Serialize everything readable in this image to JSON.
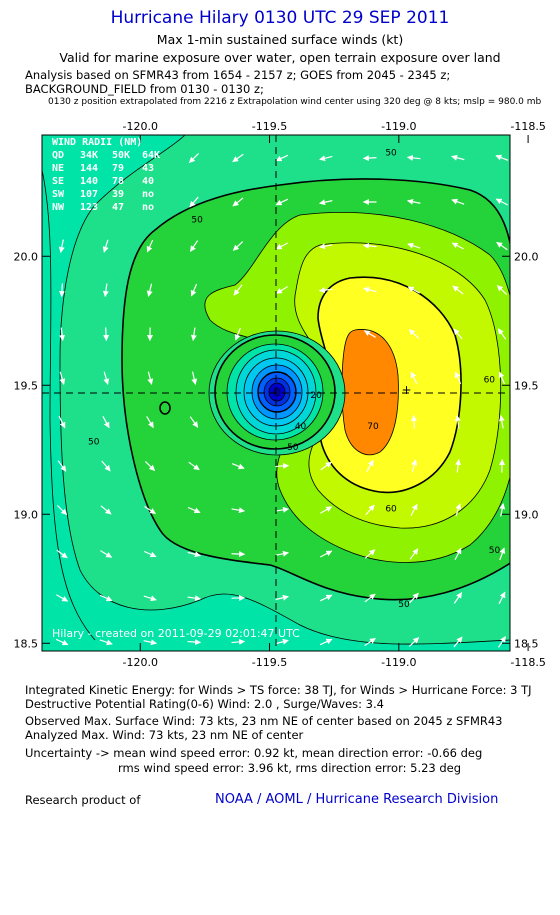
{
  "header": {
    "title": "Hurricane Hilary 0130 UTC 29 SEP 2011",
    "subtitle1": "Max 1-min sustained surface winds (kt)",
    "subtitle2": "Valid for marine exposure over water, open terrain exposure over land",
    "analysis_line1": "Analysis based on SFMR43 from 1654 - 2157 z; GOES from 2045 - 2345 z;",
    "analysis_line2": "BACKGROUND_FIELD from 0130 - 0130 z;",
    "position_note": "0130 z position extrapolated from 2216 z Extrapolation wind center using 320 deg @ 8 kts; mslp = 980.0 mb"
  },
  "wind_radii": {
    "title": "WIND RADII (NM)",
    "header": [
      "QD",
      "34K",
      "50K",
      "64K"
    ],
    "rows": [
      [
        "NE",
        "144",
        "79",
        "43"
      ],
      [
        "SE",
        "140",
        "78",
        "40"
      ],
      [
        "SW",
        "107",
        "39",
        "no"
      ],
      [
        "NW",
        "123",
        "47",
        "no"
      ]
    ]
  },
  "credit": "Hilary - created on 2011-09-29 02:01:47 UTC",
  "footer": {
    "ike": "Integrated Kinetic Energy:  for Winds > TS force: 38 TJ,  for Winds > Hurricane Force: 3 TJ",
    "dpr": "Destructive Potential Rating(0-6)   Wind: 2.0 , Surge/Waves: 3.4",
    "observed": "Observed Max. Surface Wind: 73 kts, 23 nm NE of center based on 2045 z SFMR43",
    "analyzed": "Analyzed Max. Wind: 73 kts, 23 nm NE of center",
    "uncert1": "Uncertainty -> mean wind speed error: 0.92 kt,   mean direction error:  -0.66 deg",
    "uncert2": "rms wind speed error: 3.96 kt,   rms direction error: 5.23 deg",
    "research": "Research product of",
    "noaa": "NOAA / AOML / Hurricane Research Division"
  },
  "chart_data": {
    "type": "contour",
    "x_ticks": [
      "-120.0",
      "-119.5",
      "-119.0",
      "-118.5"
    ],
    "x_tick_values": [
      -120.0,
      -119.5,
      -119.0,
      -118.5
    ],
    "y_ticks": [
      "18.5",
      "19.0",
      "19.5",
      "20.0"
    ],
    "y_tick_values": [
      18.5,
      19.0,
      19.5,
      20.0
    ],
    "xlim": [
      -120.38,
      -118.57
    ],
    "ylim": [
      18.47,
      20.47
    ],
    "center": {
      "lon": -119.37,
      "lat": 19.48
    },
    "analyzed_max_wind_location": {
      "lon": -118.97,
      "lat": 19.48
    },
    "contour_labels": [
      {
        "text": "50",
        "lon": -119.03,
        "lat": 20.39
      },
      {
        "text": "50",
        "lon": -119.78,
        "lat": 20.13
      },
      {
        "text": "50",
        "lon": -120.18,
        "lat": 19.27
      },
      {
        "text": "50",
        "lon": -119.41,
        "lat": 19.25
      },
      {
        "text": "50",
        "lon": -118.98,
        "lat": 18.64
      },
      {
        "text": "50",
        "lon": -118.63,
        "lat": 18.85
      },
      {
        "text": "60",
        "lon": -118.65,
        "lat": 19.51
      },
      {
        "text": "60",
        "lon": -119.03,
        "lat": 19.01
      },
      {
        "text": "70",
        "lon": -119.1,
        "lat": 19.33
      },
      {
        "text": "40",
        "lon": -119.38,
        "lat": 19.33
      },
      {
        "text": "20",
        "lon": -119.32,
        "lat": 19.45
      }
    ],
    "colors": {
      "kt30_40": "#00e4a8",
      "kt40_50": "#1fe08a",
      "kt50_55": "#24d23a",
      "kt55_60": "#8ef200",
      "kt60_65": "#c2f800",
      "kt65_70": "#ffff22",
      "kt70_75": "#ff8800",
      "eye_outer": "#00c8f0",
      "eye_core": "#0000cc"
    }
  }
}
